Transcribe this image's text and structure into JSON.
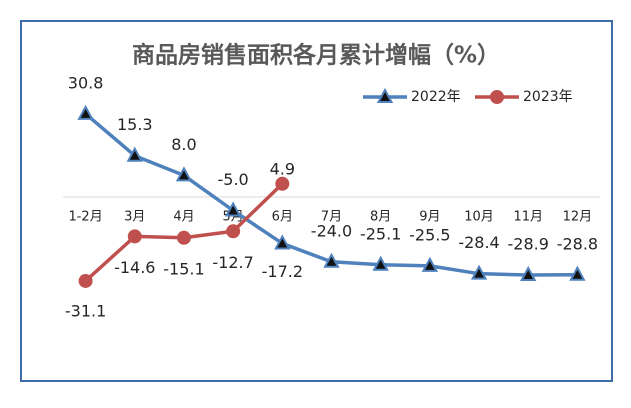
{
  "chart_data": {
    "type": "line",
    "title": "商品房销售面积各月累计增幅（%）",
    "categories": [
      "1-2月",
      "3月",
      "4月",
      "5月",
      "6月",
      "7月",
      "8月",
      "9月",
      "10月",
      "11月",
      "12月"
    ],
    "series": [
      {
        "name": "2022年",
        "color": "#4f81bd",
        "marker": "triangle",
        "values": [
          30.8,
          15.3,
          8.0,
          -5.0,
          -17.2,
          -24.0,
          -25.1,
          -25.5,
          -28.4,
          -28.9,
          -28.8
        ],
        "value_labels": [
          "30.8",
          "15.3",
          "8.0",
          "-5.0",
          "-17.2",
          "-24.0",
          "-25.1",
          "-25.5",
          "-28.4",
          "-28.9",
          "-28.8"
        ]
      },
      {
        "name": "2023年",
        "color": "#c0504d",
        "marker": "circle",
        "values": [
          -31.1,
          -14.6,
          -15.1,
          -12.7,
          4.9,
          null,
          null,
          null,
          null,
          null,
          null
        ],
        "value_labels": [
          "-31.1",
          "-14.6",
          "-15.1",
          "-12.7",
          "4.9",
          null,
          null,
          null,
          null,
          null,
          null
        ]
      }
    ],
    "ylim": [
      -40,
      40
    ],
    "legend": "top-right"
  }
}
